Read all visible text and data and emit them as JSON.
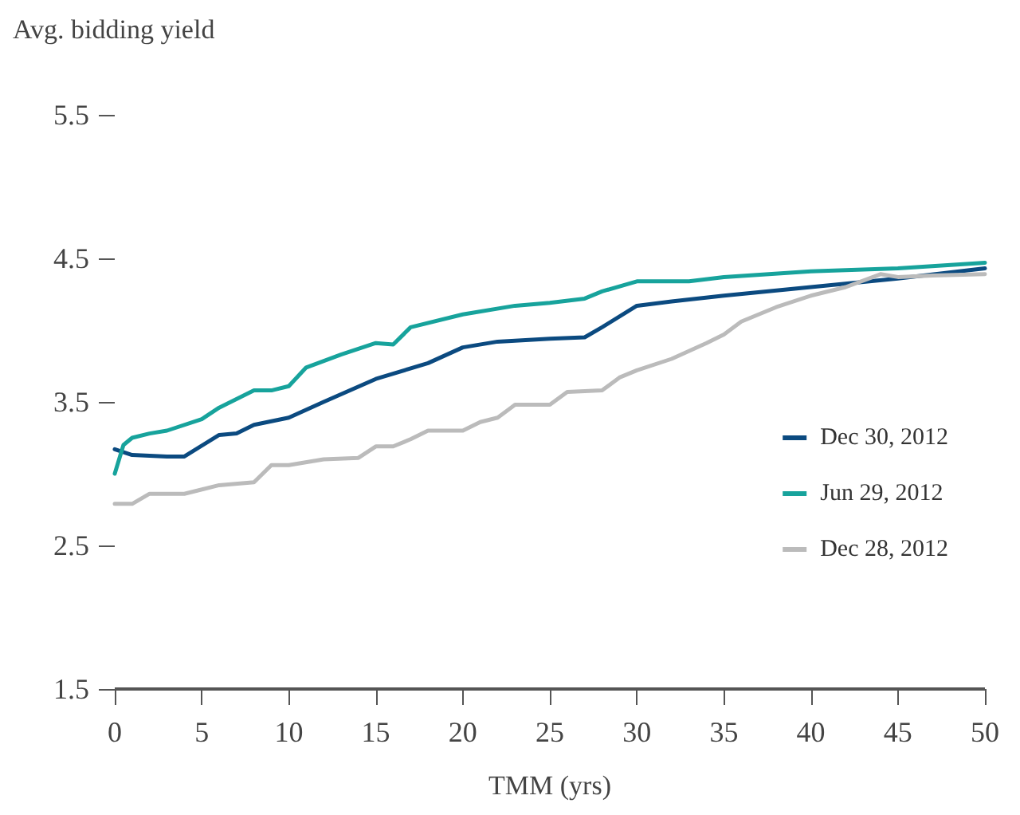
{
  "chart_data": {
    "type": "line",
    "ylabel": "Avg. bidding yield",
    "xlabel": "TMM (yrs)",
    "xlim": [
      0,
      50
    ],
    "xticks": [
      0,
      5,
      10,
      15,
      20,
      25,
      30,
      35,
      40,
      45,
      50
    ],
    "ylim": [
      1.5,
      5.5
    ],
    "yticks": [
      1.5,
      2.5,
      3.5,
      4.5,
      5.5
    ],
    "grid": false,
    "legend": "right",
    "marker": "none",
    "line_style": "solid",
    "series": [
      {
        "name": "Dec 30, 2012",
        "color": "#0b4a80",
        "x": [
          0,
          1,
          3,
          4,
          6,
          7,
          8,
          10,
          12,
          15,
          18,
          20,
          22,
          25,
          27,
          28,
          30,
          32,
          35,
          40,
          45,
          50
        ],
        "values": [
          3.17,
          3.13,
          3.12,
          3.12,
          3.27,
          3.28,
          3.34,
          3.39,
          3.5,
          3.66,
          3.77,
          3.88,
          3.92,
          3.94,
          3.95,
          4.02,
          4.17,
          4.2,
          4.24,
          4.3,
          4.36,
          4.43
        ]
      },
      {
        "name": "Jun 29, 2012",
        "color": "#17a39c",
        "x": [
          0,
          0.5,
          1,
          2,
          3,
          5,
          6,
          8,
          9,
          10,
          11,
          13,
          15,
          16,
          17,
          20,
          23,
          25,
          27,
          28,
          30,
          33,
          35,
          40,
          45,
          50
        ],
        "values": [
          3.0,
          3.2,
          3.25,
          3.28,
          3.3,
          3.38,
          3.46,
          3.58,
          3.58,
          3.61,
          3.74,
          3.83,
          3.91,
          3.9,
          4.02,
          4.11,
          4.17,
          4.19,
          4.22,
          4.27,
          4.34,
          4.34,
          4.37,
          4.41,
          4.43,
          4.47
        ]
      },
      {
        "name": "Dec 28, 2012",
        "color": "#bbbbbb",
        "x": [
          0,
          1,
          2,
          4,
          6,
          8,
          9,
          10,
          12,
          14,
          15,
          16,
          17,
          18,
          20,
          21,
          22,
          23,
          25,
          26,
          28,
          29,
          30,
          32,
          34,
          35,
          36,
          38,
          40,
          42,
          44,
          45,
          47,
          50
        ],
        "values": [
          2.79,
          2.79,
          2.86,
          2.86,
          2.92,
          2.94,
          3.06,
          3.06,
          3.1,
          3.11,
          3.19,
          3.19,
          3.24,
          3.3,
          3.3,
          3.36,
          3.39,
          3.48,
          3.48,
          3.57,
          3.58,
          3.67,
          3.72,
          3.8,
          3.91,
          3.97,
          4.06,
          4.16,
          4.24,
          4.3,
          4.39,
          4.37,
          4.38,
          4.39
        ]
      }
    ]
  }
}
